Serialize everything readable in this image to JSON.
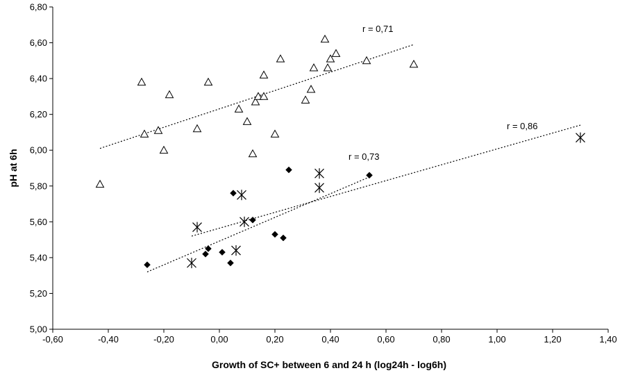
{
  "chart_data": {
    "type": "scatter",
    "title": "",
    "xlabel": "Growth of SC+ between 6 and 24 h (log24h - log6h)",
    "ylabel": "pH at 6h",
    "xlim": [
      -0.6,
      1.4
    ],
    "ylim": [
      5.0,
      6.8
    ],
    "x_ticks": [
      "-0,60",
      "-0,40",
      "-0,20",
      "0,00",
      "0,20",
      "0,40",
      "0,60",
      "0,80",
      "1,00",
      "1,20",
      "1,40"
    ],
    "y_ticks": [
      "5,00",
      "5,20",
      "5,40",
      "5,60",
      "5,80",
      "6,00",
      "6,20",
      "6,40",
      "6,60",
      "6,80"
    ],
    "grid": false,
    "legend": "none",
    "series": [
      {
        "marker": "triangle-open",
        "points": [
          [
            -0.43,
            5.81
          ],
          [
            -0.28,
            6.38
          ],
          [
            -0.27,
            6.09
          ],
          [
            -0.22,
            6.11
          ],
          [
            -0.2,
            6.0
          ],
          [
            -0.18,
            6.31
          ],
          [
            -0.08,
            6.12
          ],
          [
            -0.04,
            6.38
          ],
          [
            0.07,
            6.23
          ],
          [
            0.1,
            6.16
          ],
          [
            0.12,
            5.98
          ],
          [
            0.13,
            6.27
          ],
          [
            0.14,
            6.3
          ],
          [
            0.16,
            6.42
          ],
          [
            0.16,
            6.3
          ],
          [
            0.2,
            6.09
          ],
          [
            0.22,
            6.51
          ],
          [
            0.31,
            6.28
          ],
          [
            0.33,
            6.34
          ],
          [
            0.34,
            6.46
          ],
          [
            0.38,
            6.62
          ],
          [
            0.39,
            6.46
          ],
          [
            0.4,
            6.51
          ],
          [
            0.42,
            6.54
          ],
          [
            0.53,
            6.5
          ],
          [
            0.7,
            6.48
          ]
        ],
        "trendline": {
          "x": [
            -0.43,
            0.7
          ],
          "y": [
            6.01,
            6.59
          ]
        },
        "annotation": "r = 0,71"
      },
      {
        "marker": "diamond-filled",
        "points": [
          [
            -0.26,
            5.36
          ],
          [
            -0.05,
            5.42
          ],
          [
            -0.04,
            5.45
          ],
          [
            0.01,
            5.43
          ],
          [
            0.04,
            5.37
          ],
          [
            0.05,
            5.76
          ],
          [
            0.12,
            5.61
          ],
          [
            0.2,
            5.53
          ],
          [
            0.23,
            5.51
          ],
          [
            0.25,
            5.89
          ],
          [
            0.54,
            5.86
          ]
        ],
        "trendline": {
          "x": [
            -0.26,
            0.54
          ],
          "y": [
            5.32,
            5.85
          ]
        },
        "annotation": "r = 0,86"
      },
      {
        "marker": "asterisk",
        "points": [
          [
            -0.1,
            5.37
          ],
          [
            -0.08,
            5.57
          ],
          [
            0.06,
            5.44
          ],
          [
            0.08,
            5.75
          ],
          [
            0.09,
            5.6
          ],
          [
            0.36,
            5.87
          ],
          [
            0.36,
            5.79
          ],
          [
            1.3,
            6.07
          ]
        ],
        "trendline": {
          "x": [
            -0.1,
            1.3
          ],
          "y": [
            5.52,
            6.14
          ]
        },
        "annotation": "r = 0,73"
      }
    ]
  }
}
